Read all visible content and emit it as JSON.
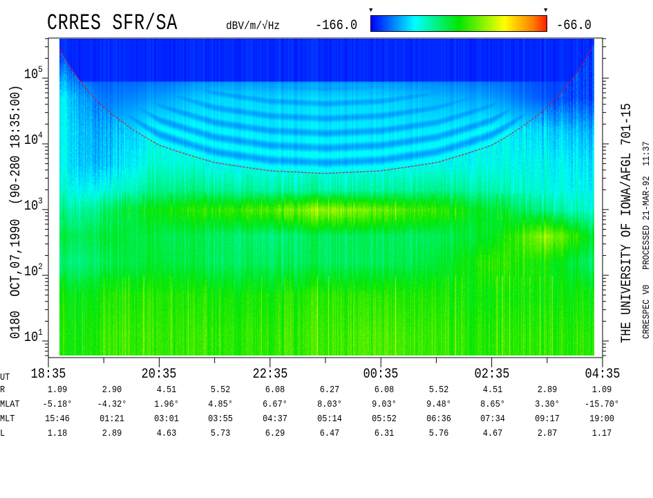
{
  "title": "CRRES SFR/SA",
  "colorbar": {
    "unit": "dBV/m/√Hz",
    "min_label": "-166.0",
    "max_label": "-66.0",
    "min": -166.0,
    "max": -66.0,
    "colors": [
      "#0000ff",
      "#00ffff",
      "#00e600",
      "#ffff00",
      "#ff2000"
    ],
    "marker_glyph": "▼"
  },
  "left_label": "0180  OCT,07,1990  (90-280 18:35:00)",
  "right_label_1": "THE UNIVERSITY OF IOWA/AFGL 701-15",
  "right_label_2": "CRRESPEC V0   PROCESSED 21-MAR-92  11:37",
  "chart_data": {
    "type": "heatmap",
    "title": "CRRES SFR/SA",
    "y_scale": "log",
    "ylim": [
      5.6,
      410000
    ],
    "y_ticks": [
      {
        "base": "10",
        "exp": "5",
        "value": 100000
      },
      {
        "base": "10",
        "exp": "4",
        "value": 10000
      },
      {
        "base": "10",
        "exp": "3",
        "value": 1000
      },
      {
        "base": "10",
        "exp": "2",
        "value": 100
      },
      {
        "base": "10",
        "exp": "1",
        "value": 10
      }
    ],
    "x_ticks": [
      "18:35",
      "20:35",
      "22:35",
      "00:35",
      "02:35",
      "04:35"
    ],
    "x_range_hours": [
      0,
      10
    ],
    "grid": false,
    "level_grid": {
      "log10_freq": [
        5.3,
        4.7,
        4.2,
        3.7,
        3.3,
        3.0,
        2.6,
        2.2,
        1.7,
        1.1
      ],
      "hour_offsets": [
        0,
        1,
        2,
        3,
        4,
        5,
        6,
        7,
        8,
        9,
        10
      ],
      "dB": [
        [
          -160,
          -160,
          -160,
          -160,
          -160,
          -160,
          -160,
          -160,
          -160,
          -160,
          -160
        ],
        [
          -140,
          -155,
          -150,
          -145,
          -145,
          -145,
          -145,
          -148,
          -150,
          -158,
          -160
        ],
        [
          -140,
          -150,
          -140,
          -142,
          -143,
          -143,
          -143,
          -143,
          -140,
          -145,
          -150
        ],
        [
          -140,
          -148,
          -135,
          -140,
          -140,
          -140,
          -140,
          -140,
          -138,
          -140,
          -145
        ],
        [
          -138,
          -140,
          -128,
          -130,
          -132,
          -132,
          -132,
          -130,
          -132,
          -138,
          -142
        ],
        [
          -135,
          -128,
          -115,
          -112,
          -108,
          -100,
          -105,
          -112,
          -120,
          -130,
          -140
        ],
        [
          -125,
          -122,
          -122,
          -125,
          -128,
          -125,
          -125,
          -125,
          -118,
          -100,
          -125
        ],
        [
          -130,
          -125,
          -120,
          -125,
          -125,
          -125,
          -125,
          -122,
          -110,
          -115,
          -130
        ],
        [
          -120,
          -115,
          -112,
          -115,
          -115,
          -112,
          -112,
          -115,
          -115,
          -115,
          -118
        ],
        [
          -118,
          -112,
          -110,
          -112,
          -112,
          -110,
          -108,
          -112,
          -112,
          -112,
          -115
        ]
      ]
    },
    "curve_color": "#ff0000"
  },
  "ephemeris": {
    "rows": [
      {
        "label": "UT",
        "values": [
          "18:35",
          "20:35",
          "22:35",
          "00:35",
          "02:35",
          "04:35"
        ]
      },
      {
        "label": "R",
        "values": [
          "1.09",
          "2.90",
          "4.51",
          "5.52",
          "6.08",
          "6.27",
          "6.08",
          "5.52",
          "4.51",
          "2.89",
          "1.09"
        ]
      },
      {
        "label": "MLAT",
        "values": [
          "-5.18°",
          "-4.32°",
          "1.96°",
          "4.85°",
          "6.67°",
          "8.03°",
          "9.03°",
          "9.48°",
          "8.65°",
          "3.30°",
          "-15.70°"
        ]
      },
      {
        "label": "MLT",
        "values": [
          "15:46",
          "01:21",
          "03:01",
          "03:55",
          "04:37",
          "05:14",
          "05:52",
          "06:36",
          "07:34",
          "09:17",
          "19:00"
        ]
      },
      {
        "label": "L",
        "values": [
          "1.18",
          "2.89",
          "4.63",
          "5.73",
          "6.29",
          "6.47",
          "6.31",
          "5.76",
          "4.67",
          "2.87",
          "1.17"
        ]
      }
    ]
  }
}
